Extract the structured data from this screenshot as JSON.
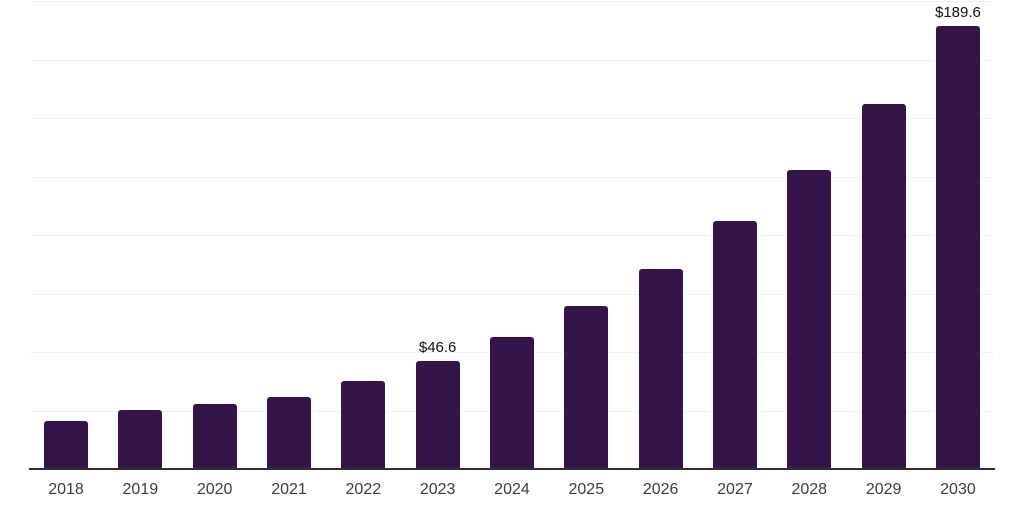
{
  "chart_data": {
    "type": "bar",
    "title": "",
    "xlabel": "",
    "ylabel": "",
    "categories": [
      "2018",
      "2019",
      "2020",
      "2021",
      "2022",
      "2023",
      "2024",
      "2025",
      "2026",
      "2027",
      "2028",
      "2029",
      "2030"
    ],
    "values": [
      20.9,
      25.6,
      28.2,
      31.2,
      38.0,
      46.6,
      56.8,
      70.1,
      85.9,
      106.4,
      128.2,
      156.4,
      189.6
    ],
    "data_labels": {
      "2023": "$46.6",
      "2030": "$189.6"
    },
    "ylim": [
      0,
      200
    ],
    "grid_step": 25,
    "grid": "horizontal",
    "y_tick_labels_visible": false,
    "legend_position": "none",
    "colors": {
      "bar": "#351549",
      "gridline": "#f2f2f2",
      "axis_line": "#2e2e2e",
      "x_tick_label": "#3d3d3d",
      "data_label": "#111111",
      "background": "#ffffff"
    }
  }
}
